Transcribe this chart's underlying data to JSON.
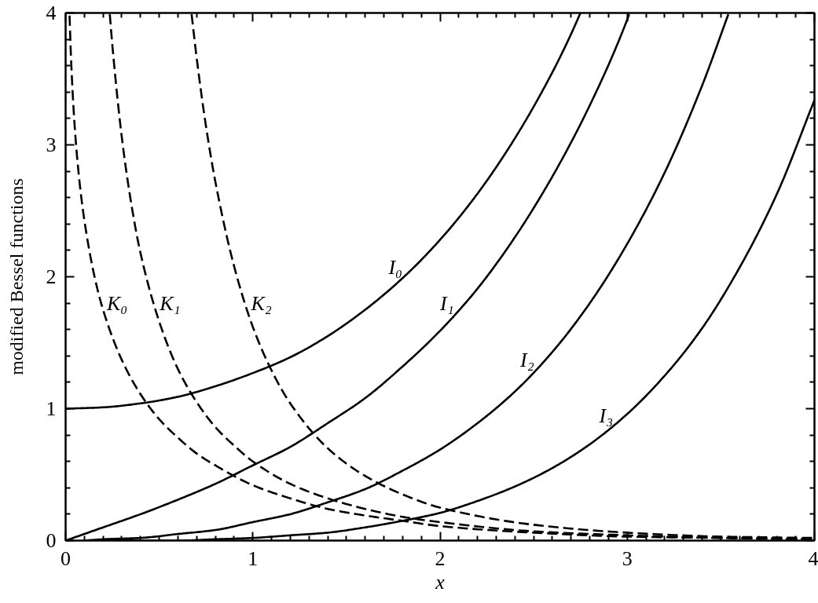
{
  "chart_data": {
    "type": "line",
    "xlabel": "x",
    "ylabel": "modified Bessel functions",
    "xlim": [
      0,
      4
    ],
    "ylim": [
      0,
      4
    ],
    "xticks": [
      0,
      1,
      2,
      3,
      4
    ],
    "yticks": [
      0,
      1,
      2,
      3,
      4
    ],
    "grid": false,
    "series": [
      {
        "name": "I₀",
        "color": "#000000",
        "line_style": "solid",
        "x": [
          0,
          0.2,
          0.4,
          0.6,
          0.8,
          1.0,
          1.2,
          1.4,
          1.6,
          1.8,
          2.0,
          2.2,
          2.4,
          2.6,
          2.7,
          2.75
        ],
        "values": [
          1.0,
          1.01,
          1.04,
          1.09,
          1.17,
          1.27,
          1.39,
          1.55,
          1.75,
          1.99,
          2.28,
          2.63,
          3.05,
          3.55,
          3.84,
          4.0
        ]
      },
      {
        "name": "I₁",
        "color": "#000000",
        "line_style": "solid",
        "x": [
          0,
          0.2,
          0.4,
          0.6,
          0.8,
          1.0,
          1.2,
          1.4,
          1.6,
          1.8,
          2.0,
          2.2,
          2.4,
          2.6,
          2.8,
          3.0,
          3.01
        ],
        "values": [
          0,
          0.1,
          0.2,
          0.31,
          0.43,
          0.57,
          0.71,
          0.89,
          1.08,
          1.32,
          1.59,
          1.91,
          2.3,
          2.76,
          3.3,
          3.95,
          3.99
        ]
      },
      {
        "name": "I₂",
        "color": "#000000",
        "line_style": "solid",
        "x": [
          0.1,
          0.2,
          0.4,
          0.6,
          0.8,
          1.0,
          1.2,
          1.4,
          1.6,
          1.8,
          2.0,
          2.2,
          2.4,
          2.6,
          2.8,
          3.0,
          3.2,
          3.4,
          3.54
        ],
        "values": [
          0,
          0.01,
          0.02,
          0.05,
          0.08,
          0.14,
          0.2,
          0.29,
          0.39,
          0.53,
          0.69,
          0.89,
          1.13,
          1.43,
          1.8,
          2.25,
          2.79,
          3.45,
          3.99
        ]
      },
      {
        "name": "I₃",
        "color": "#000000",
        "line_style": "solid",
        "x": [
          0.1,
          0.2,
          0.4,
          0.6,
          0.8,
          1.0,
          1.2,
          1.4,
          1.6,
          1.8,
          2.0,
          2.2,
          2.4,
          2.6,
          2.8,
          3.0,
          3.2,
          3.4,
          3.6,
          3.8,
          4.0
        ],
        "values": [
          0,
          0,
          0,
          0,
          0.01,
          0.02,
          0.04,
          0.06,
          0.1,
          0.15,
          0.21,
          0.3,
          0.41,
          0.55,
          0.73,
          0.96,
          1.25,
          1.61,
          2.07,
          2.63,
          3.34
        ]
      },
      {
        "name": "K₀",
        "color": "#000000",
        "line_style": "dashed",
        "x": [
          0.021,
          0.03,
          0.05,
          0.075,
          0.1,
          0.15,
          0.2,
          0.3,
          0.4,
          0.5,
          0.6,
          0.7,
          0.8,
          1.0,
          1.2,
          1.4,
          1.6,
          1.8,
          2.0,
          2.5,
          3.0,
          3.5,
          4.0
        ],
        "values": [
          3.98,
          3.62,
          3.11,
          2.71,
          2.43,
          2.03,
          1.75,
          1.37,
          1.11,
          0.92,
          0.78,
          0.66,
          0.57,
          0.42,
          0.32,
          0.24,
          0.19,
          0.15,
          0.11,
          0.06,
          0.03,
          0.02,
          0.01
        ]
      },
      {
        "name": "K₁",
        "color": "#000000",
        "line_style": "dashed",
        "x": [
          0.236,
          0.25,
          0.3,
          0.35,
          0.4,
          0.5,
          0.6,
          0.7,
          0.8,
          0.9,
          1.0,
          1.2,
          1.4,
          1.6,
          1.8,
          2.0,
          2.5,
          3.0,
          3.5,
          4.0
        ],
        "values": [
          3.99,
          3.75,
          3.06,
          2.56,
          2.18,
          1.66,
          1.3,
          1.05,
          0.86,
          0.72,
          0.6,
          0.43,
          0.32,
          0.24,
          0.18,
          0.14,
          0.07,
          0.04,
          0.02,
          0.01
        ]
      },
      {
        "name": "K₂",
        "color": "#000000",
        "line_style": "dashed",
        "x": [
          0.673,
          0.7,
          0.75,
          0.8,
          0.9,
          1.0,
          1.1,
          1.2,
          1.4,
          1.6,
          1.8,
          2.0,
          2.5,
          3.0,
          3.5,
          4.0
        ],
        "values": [
          3.99,
          3.66,
          3.14,
          2.72,
          2.08,
          1.62,
          1.29,
          1.04,
          0.7,
          0.49,
          0.35,
          0.25,
          0.12,
          0.06,
          0.03,
          0.02
        ]
      }
    ]
  }
}
